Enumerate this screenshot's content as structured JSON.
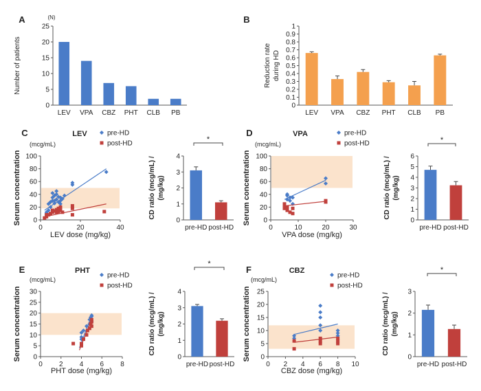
{
  "colors": {
    "blue": "#4a7cc8",
    "red": "#c0403c",
    "orange": "#f4a04e",
    "band": "#fbe3cc",
    "axis": "#555555"
  },
  "chart_data": [
    {
      "id": "A",
      "type": "bar",
      "panel_label": "A",
      "unit_note": "(N)",
      "ylabel": "Number of patients",
      "categories": [
        "LEV",
        "VPA",
        "CBZ",
        "PHT",
        "CLB",
        "PB"
      ],
      "values": [
        20,
        14,
        7,
        6,
        2,
        2
      ],
      "ylim": [
        0,
        25
      ],
      "yticks": [
        0,
        5,
        10,
        15,
        20,
        25
      ]
    },
    {
      "id": "B",
      "type": "bar",
      "panel_label": "B",
      "ylabel": "Reduction rate during HD",
      "categories": [
        "LEV",
        "VPA",
        "CBZ",
        "PHT",
        "CLB",
        "PB"
      ],
      "values": [
        0.66,
        0.33,
        0.42,
        0.29,
        0.25,
        0.63
      ],
      "errors": [
        0.015,
        0.04,
        0.03,
        0.02,
        0.05,
        0.015
      ],
      "ylim": [
        0,
        1
      ],
      "yticks": [
        0,
        0.1,
        0.2,
        0.3,
        0.4,
        0.5,
        0.6,
        0.7,
        0.8,
        0.9,
        1
      ]
    },
    {
      "id": "C",
      "type": "scatter",
      "panel_label": "C",
      "title": "LEV",
      "unit_note": "(mcg/mL)",
      "ylabel": "Serum concentration",
      "xlabel": "LEV dose (mg/kg)",
      "xlim": [
        0,
        40
      ],
      "xticks": [
        0,
        20,
        40
      ],
      "ylim": [
        0,
        100
      ],
      "yticks": [
        0,
        20,
        40,
        60,
        80,
        100
      ],
      "band": [
        18,
        50
      ],
      "series": [
        {
          "name": "pre-HD",
          "marker": "diamond",
          "points": [
            [
              3,
              8
            ],
            [
              3,
              12
            ],
            [
              3,
              10
            ],
            [
              4,
              15
            ],
            [
              4,
              25
            ],
            [
              5,
              28
            ],
            [
              5,
              20
            ],
            [
              6,
              30
            ],
            [
              6,
              35
            ],
            [
              6,
              42
            ],
            [
              7,
              26
            ],
            [
              7,
              38
            ],
            [
              7,
              30
            ],
            [
              8,
              45
            ],
            [
              8,
              40
            ],
            [
              8,
              32
            ],
            [
              9,
              28
            ],
            [
              9,
              36
            ],
            [
              10,
              35
            ],
            [
              10,
              30
            ],
            [
              10,
              25
            ],
            [
              11,
              33
            ],
            [
              12,
              38
            ],
            [
              16,
              55
            ],
            [
              16,
              58
            ],
            [
              33,
              75
            ]
          ],
          "trend": [
            [
              2,
              15
            ],
            [
              33,
              80
            ]
          ]
        },
        {
          "name": "post-HD",
          "marker": "square",
          "points": [
            [
              2,
              3
            ],
            [
              3,
              5
            ],
            [
              3,
              8
            ],
            [
              4,
              8
            ],
            [
              5,
              10
            ],
            [
              6,
              12
            ],
            [
              6,
              15
            ],
            [
              7,
              14
            ],
            [
              8,
              12
            ],
            [
              8,
              16
            ],
            [
              9,
              18
            ],
            [
              9,
              13
            ],
            [
              10,
              15
            ],
            [
              10,
              20
            ],
            [
              11,
              12
            ],
            [
              16,
              22
            ],
            [
              16,
              8
            ],
            [
              16,
              18
            ],
            [
              32,
              13
            ]
          ],
          "trend": [
            [
              2,
              5
            ],
            [
              33,
              25
            ]
          ]
        }
      ]
    },
    {
      "id": "C-ratio",
      "type": "bar",
      "ylabel": "CD ratio (mcg/mL) / (mg/kg)",
      "categories": [
        "pre-HD",
        "post-HD"
      ],
      "values": [
        3.1,
        1.1
      ],
      "errors": [
        0.22,
        0.1
      ],
      "ylim": [
        0,
        4
      ],
      "yticks": [
        0,
        1,
        2,
        3,
        4
      ],
      "annotation": "*"
    },
    {
      "id": "D",
      "type": "scatter",
      "panel_label": "D",
      "title": "VPA",
      "unit_note": "(mcg/mL)",
      "ylabel": "Serum concentration",
      "xlabel": "VPA dose (mg/kg)",
      "xlim": [
        0,
        30
      ],
      "xticks": [
        0,
        10,
        20,
        30
      ],
      "ylim": [
        0,
        100
      ],
      "yticks": [
        0,
        20,
        40,
        60,
        80,
        100
      ],
      "band": [
        50,
        100
      ],
      "series": [
        {
          "name": "pre-HD",
          "marker": "diamond",
          "points": [
            [
              6,
              38
            ],
            [
              6,
              32
            ],
            [
              6,
              40
            ],
            [
              7,
              35
            ],
            [
              7,
              30
            ],
            [
              8,
              25
            ],
            [
              8,
              35
            ],
            [
              20,
              65
            ],
            [
              20,
              57
            ]
          ],
          "trend": [
            [
              5,
              32
            ],
            [
              20,
              62
            ]
          ]
        },
        {
          "name": "post-HD",
          "marker": "square",
          "points": [
            [
              5,
              22
            ],
            [
              5,
              18
            ],
            [
              5,
              25
            ],
            [
              6,
              20
            ],
            [
              6,
              15
            ],
            [
              7,
              12
            ],
            [
              8,
              18
            ],
            [
              8,
              10
            ],
            [
              20,
              30
            ],
            [
              20,
              28
            ]
          ],
          "trend": [
            [
              5,
              22
            ],
            [
              20,
              29
            ]
          ]
        }
      ]
    },
    {
      "id": "D-ratio",
      "type": "bar",
      "ylabel": "CD ratio (mcg/mL) / (mg/kg)",
      "categories": [
        "pre-HD",
        "post-HD"
      ],
      "values": [
        4.7,
        3.25
      ],
      "errors": [
        0.35,
        0.35
      ],
      "ylim": [
        0,
        6
      ],
      "yticks": [
        0,
        1,
        2,
        3,
        4,
        5,
        6
      ],
      "annotation": "*"
    },
    {
      "id": "E",
      "type": "scatter",
      "panel_label": "E",
      "title": "PHT",
      "unit_note": "(mcg/mL)",
      "ylabel": "Serum concentration",
      "xlabel": "PHT dose (mg/kg)",
      "xlim": [
        0,
        8
      ],
      "xticks": [
        0,
        2,
        4,
        6,
        8
      ],
      "ylim": [
        0,
        30
      ],
      "yticks": [
        0,
        5,
        10,
        15,
        20,
        25,
        30
      ],
      "band": [
        10,
        20
      ],
      "series": [
        {
          "name": "pre-HD",
          "marker": "diamond",
          "points": [
            [
              4,
              9
            ],
            [
              4,
              11
            ],
            [
              4,
              8
            ],
            [
              4.2,
              12
            ],
            [
              4.5,
              14
            ],
            [
              4.8,
              17
            ],
            [
              4.8,
              15
            ],
            [
              4.9,
              18
            ],
            [
              5,
              19
            ],
            [
              5,
              16
            ],
            [
              5,
              18.5
            ]
          ],
          "trend": [
            [
              3.8,
              4
            ],
            [
              5,
              19
            ]
          ]
        },
        {
          "name": "post-HD",
          "marker": "square",
          "points": [
            [
              3.2,
              6
            ],
            [
              4,
              6
            ],
            [
              4,
              5
            ],
            [
              4.2,
              8
            ],
            [
              4.5,
              10
            ],
            [
              4.6,
              12
            ],
            [
              4.8,
              13
            ],
            [
              4.9,
              15
            ],
            [
              5,
              17
            ],
            [
              5,
              14
            ],
            [
              5,
              16
            ]
          ],
          "trend": [
            [
              3.8,
              3
            ],
            [
              5,
              17
            ]
          ]
        }
      ]
    },
    {
      "id": "E-ratio",
      "type": "bar",
      "ylabel": "CD ratio (mcg/mL) / (mg/kg)",
      "categories": [
        "pre-HD",
        "post-HD"
      ],
      "values": [
        3.1,
        2.2
      ],
      "errors": [
        0.1,
        0.12
      ],
      "ylim": [
        0,
        4
      ],
      "yticks": [
        0,
        1,
        2,
        3,
        4
      ],
      "annotation": "*"
    },
    {
      "id": "F",
      "type": "scatter",
      "panel_label": "F",
      "title": "CBZ",
      "unit_note": "(mcg/mL)",
      "ylabel": "Serum concentration",
      "xlabel": "CBZ dose (mg/kg)",
      "xlim": [
        0,
        10
      ],
      "xticks": [
        0,
        2,
        4,
        6,
        8,
        10
      ],
      "ylim": [
        0,
        25
      ],
      "yticks": [
        0,
        5,
        10,
        15,
        20,
        25
      ],
      "band": [
        3,
        12
      ],
      "series": [
        {
          "name": "pre-HD",
          "marker": "diamond",
          "points": [
            [
              3,
              8
            ],
            [
              3,
              7
            ],
            [
              6,
              19.5
            ],
            [
              6,
              17
            ],
            [
              6,
              15
            ],
            [
              6,
              12
            ],
            [
              6,
              10
            ],
            [
              8,
              10
            ],
            [
              8,
              9
            ],
            [
              8,
              8
            ]
          ],
          "trend": [
            [
              3,
              8.5
            ],
            [
              8,
              12.5
            ]
          ]
        },
        {
          "name": "post-HD",
          "marker": "square",
          "points": [
            [
              3,
              6
            ],
            [
              3,
              3
            ],
            [
              6,
              7
            ],
            [
              6,
              6
            ],
            [
              6,
              5
            ],
            [
              8,
              7
            ],
            [
              8,
              6
            ],
            [
              8,
              5
            ]
          ],
          "trend": [
            [
              3,
              5.5
            ],
            [
              8,
              7.5
            ]
          ]
        }
      ]
    },
    {
      "id": "F-ratio",
      "type": "bar",
      "ylabel": "CD ratio (mcg/mL) / (mg/kg)",
      "categories": [
        "pre-HD",
        "post-HD"
      ],
      "values": [
        2.15,
        1.27
      ],
      "errors": [
        0.22,
        0.18
      ],
      "ylim": [
        0,
        3
      ],
      "yticks": [
        0,
        1,
        2,
        3
      ],
      "annotation": "*"
    }
  ]
}
